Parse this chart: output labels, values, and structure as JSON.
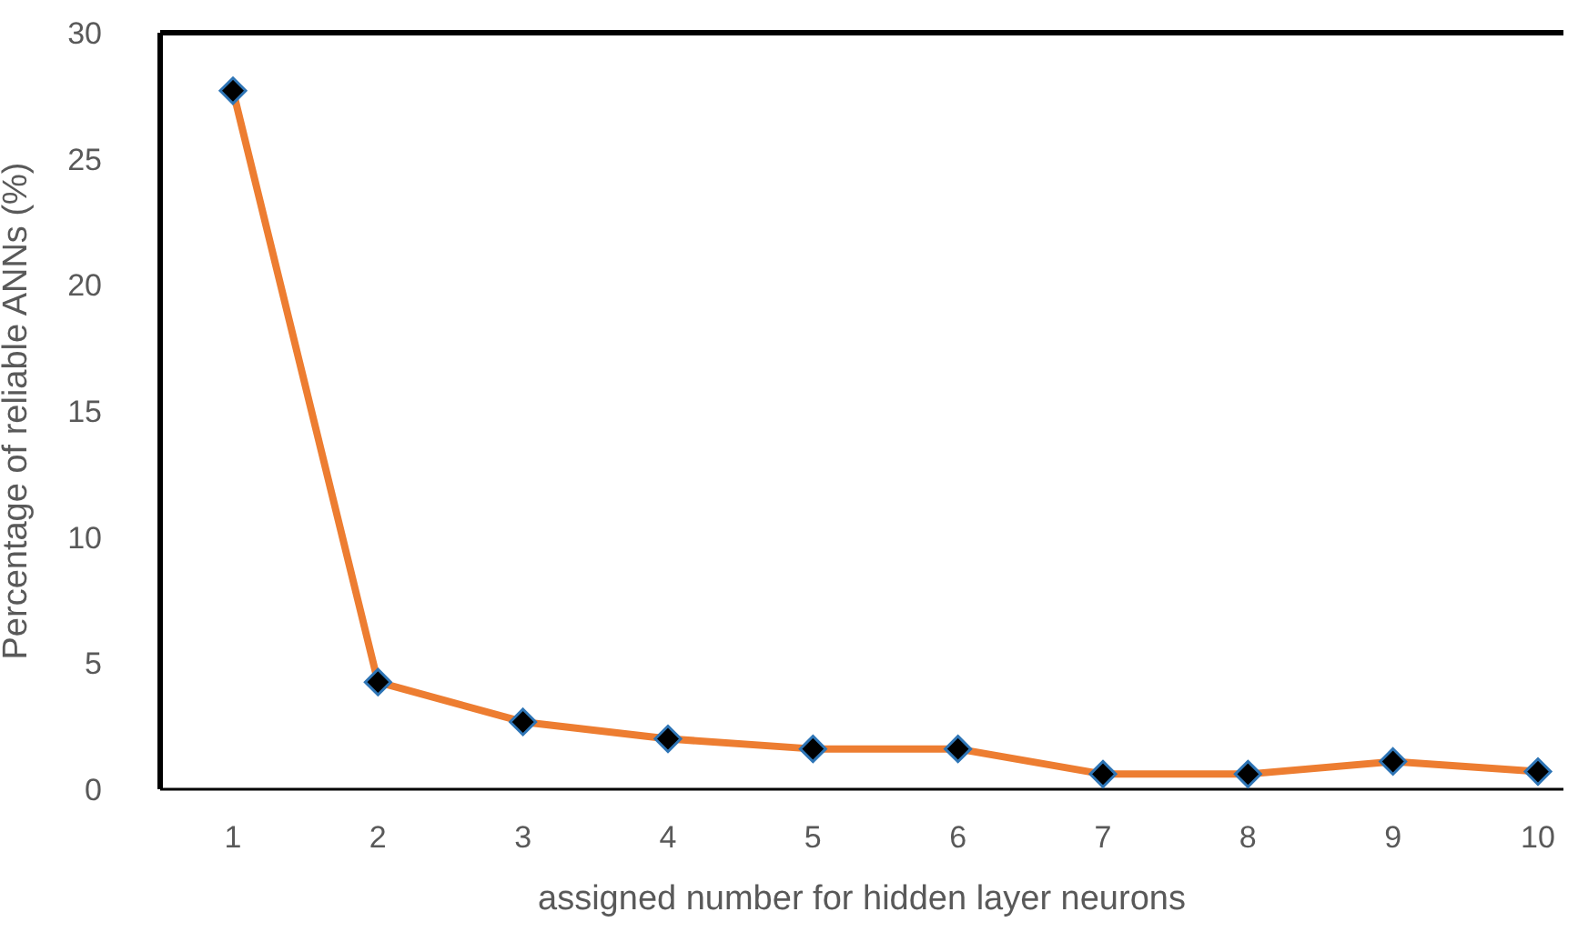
{
  "chart_data": {
    "type": "line",
    "xlabel": "assigned number for hidden layer neurons",
    "ylabel": "Percentage of reliable ANNs (%)",
    "categories": [
      "1",
      "2",
      "3",
      "4",
      "5",
      "6",
      "7",
      "8",
      "9",
      "10"
    ],
    "series": [
      {
        "color": "#ed7d31",
        "values": [
          27.7,
          4.25,
          2.67,
          2.0,
          1.6,
          1.6,
          0.6,
          0.6,
          1.1,
          0.7
        ]
      }
    ],
    "ylim": [
      0,
      30
    ],
    "yticks": [
      0,
      5,
      10,
      15,
      20,
      25,
      30
    ],
    "marker": "diamond",
    "line_style": "solid"
  }
}
